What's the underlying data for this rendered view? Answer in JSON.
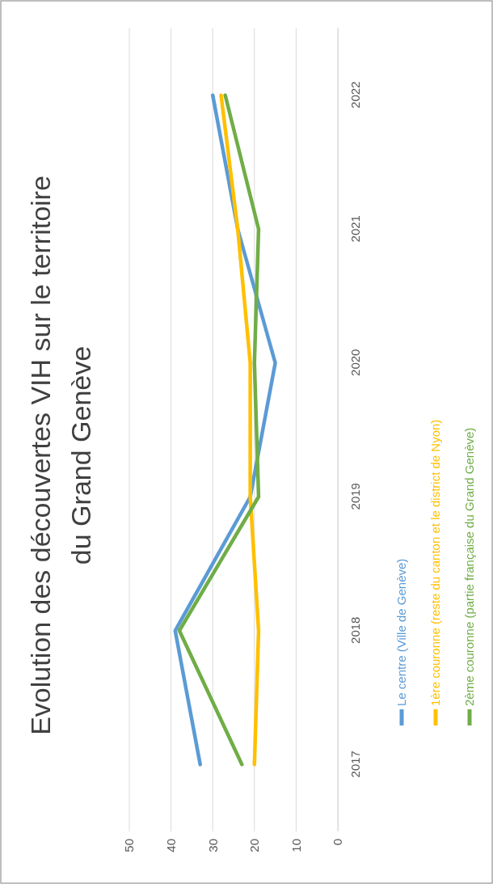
{
  "chart_data": {
    "type": "line",
    "title": "Evolution des découvertes VIH sur le territoire du Grand Genève",
    "orientation": "horizontal",
    "categories": [
      "2022",
      "2021",
      "2020",
      "2019",
      "2018",
      "2017"
    ],
    "series": [
      {
        "name": "Le centre (Ville de Genève)",
        "color": "#5b9bd5",
        "values": [
          30,
          24,
          15,
          21,
          39,
          33
        ]
      },
      {
        "name": "1ère couronne (reste du canton et le district de Nyon)",
        "color": "#ffc000",
        "values": [
          28,
          24,
          21,
          21,
          19,
          20
        ]
      },
      {
        "name": "2ème couronne (partie française du Grand Genève)",
        "color": "#70ad47",
        "values": [
          27,
          19,
          20,
          19,
          38,
          23
        ]
      }
    ],
    "xlim": [
      50,
      0
    ],
    "xticks": [
      50,
      40,
      30,
      20,
      10,
      0
    ],
    "grid": "x",
    "legend": "right",
    "line_style": "solid",
    "marker": "none"
  }
}
